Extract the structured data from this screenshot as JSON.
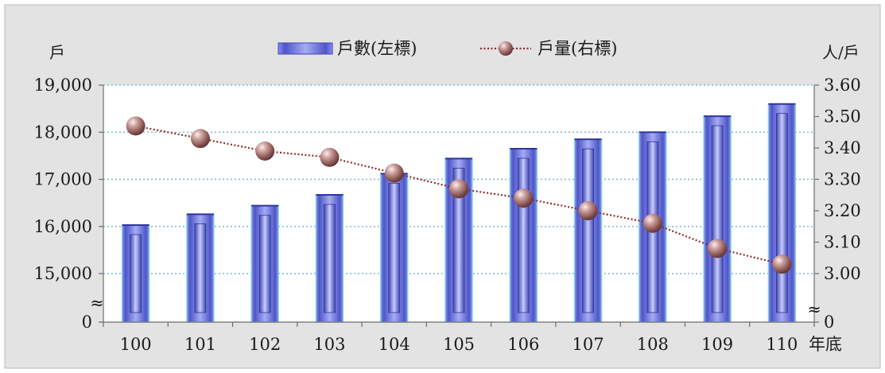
{
  "chart_data": {
    "type": "bar",
    "categories": [
      "100",
      "101",
      "102",
      "103",
      "104",
      "105",
      "106",
      "107",
      "108",
      "109",
      "110"
    ],
    "x_unit_label": "年底",
    "series": [
      {
        "name": "戶數(左標)",
        "type": "bar",
        "axis": "left",
        "color": "#6b74e0",
        "values": [
          16030,
          16260,
          16440,
          16670,
          17120,
          17440,
          17650,
          17850,
          18000,
          18340,
          18600
        ]
      },
      {
        "name": "戶量(右標)",
        "type": "line",
        "axis": "right",
        "color": "#8b2d2d",
        "marker_color": "#b98a88",
        "values": [
          3.47,
          3.43,
          3.39,
          3.37,
          3.32,
          3.27,
          3.24,
          3.2,
          3.16,
          3.08,
          3.03
        ]
      }
    ],
    "left_axis": {
      "unit_label": "戶",
      "ticks": [
        "0",
        "15,000",
        "16,000",
        "17,000",
        "18,000",
        "19,000"
      ],
      "scale_min": 15000,
      "scale_max": 19000,
      "broken_axis": true
    },
    "right_axis": {
      "unit_label": "人/戶",
      "ticks": [
        "0",
        "3.00",
        "3.10",
        "3.20",
        "3.30",
        "3.40",
        "3.50",
        "3.60"
      ],
      "scale_min": 3.0,
      "scale_max": 3.6,
      "broken_axis": true
    },
    "legend_position": "top-center",
    "grid": true
  }
}
